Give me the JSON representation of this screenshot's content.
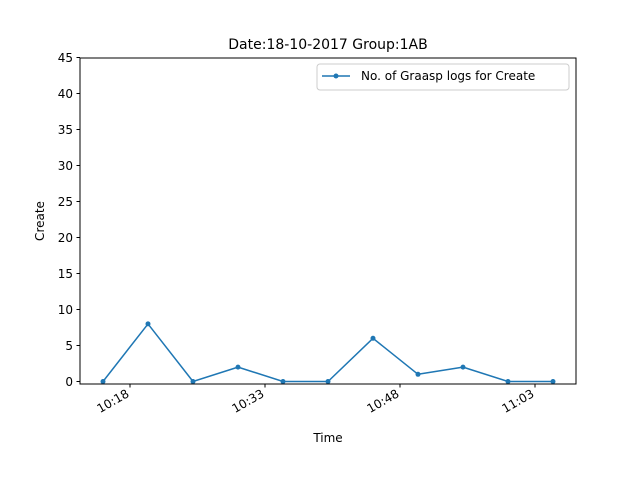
{
  "chart_data": {
    "type": "line",
    "title": "Date:18-10-2017  Group:1AB",
    "xlabel": "Time",
    "ylabel": "Create",
    "x_ticks": [
      "10:18",
      "10:33",
      "10:48",
      "11:03"
    ],
    "x_tick_minutes": [
      1098,
      1113,
      1128,
      1143
    ],
    "x": [
      "10:15",
      "10:20",
      "10:25",
      "10:30",
      "10:35",
      "10:40",
      "10:45",
      "10:50",
      "10:55",
      "11:00",
      "11:05"
    ],
    "x_minutes": [
      1095,
      1100,
      1105,
      1110,
      1115,
      1120,
      1125,
      1130,
      1135,
      1140,
      1145
    ],
    "xlim_minutes": [
      1095,
      1145
    ],
    "ylim": [
      0,
      45
    ],
    "y_ticks": [
      0,
      5,
      10,
      15,
      20,
      25,
      30,
      35,
      40,
      45
    ],
    "series": [
      {
        "name": "No. of Graasp logs for Create",
        "values": [
          0,
          8,
          0,
          2,
          0,
          0,
          6,
          1,
          2,
          0,
          0
        ],
        "color": "#1f77b4",
        "marker": "point"
      }
    ],
    "legend": "top-right",
    "grid": false
  }
}
